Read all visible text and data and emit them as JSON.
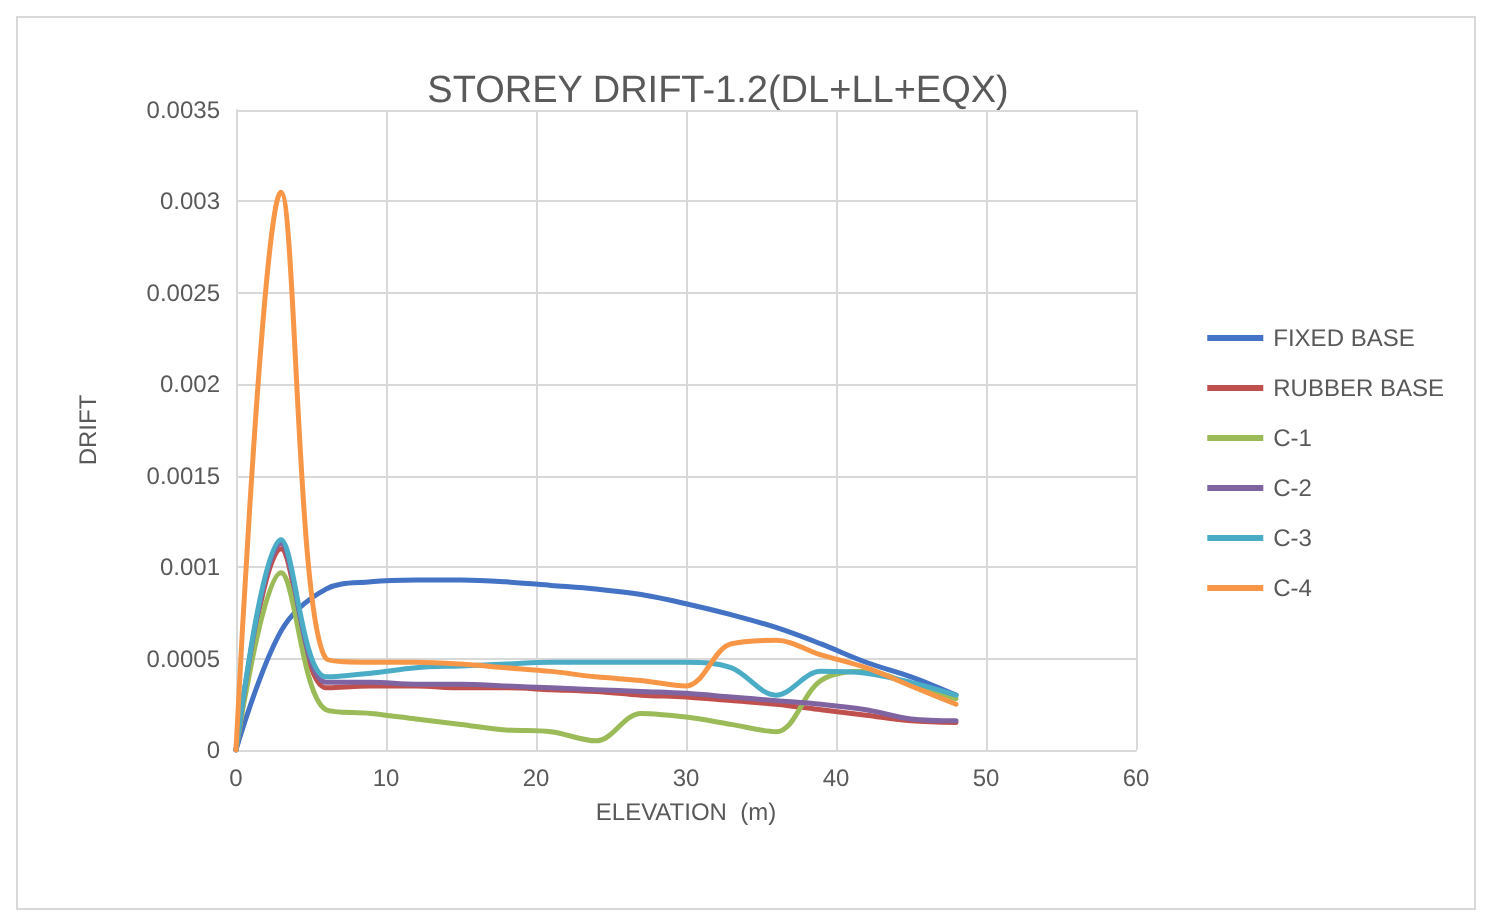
{
  "chart_data": {
    "type": "line",
    "title": "STOREY DRIFT-1.2(DL+LL+EQX)",
    "xlabel": "ELEVATION  (m)",
    "ylabel": "DRIFT",
    "x": [
      0,
      3,
      6,
      9,
      12,
      15,
      18,
      21,
      24,
      27,
      30,
      33,
      36,
      39,
      42,
      45,
      48
    ],
    "xlim": [
      0,
      60
    ],
    "xticks": [
      0,
      10,
      20,
      30,
      40,
      50,
      60
    ],
    "ylim": [
      0,
      0.0035
    ],
    "yticks": [
      0,
      0.0005,
      0.001,
      0.0015,
      0.002,
      0.0025,
      0.003,
      0.0035
    ],
    "grid": true,
    "legend": "right",
    "marker": "none",
    "line_style": "solid",
    "series": [
      {
        "name": "FIXED BASE",
        "color": "#4472c4",
        "values": [
          0,
          0.00065,
          0.00088,
          0.00092,
          0.00093,
          0.00093,
          0.00092,
          0.0009,
          0.00088,
          0.00085,
          0.0008,
          0.00074,
          0.00067,
          0.00058,
          0.00048,
          0.0004,
          0.0003
        ]
      },
      {
        "name": "RUBBER BASE",
        "color": "#c0504d",
        "values": [
          0,
          0.0011,
          0.00034,
          0.00035,
          0.00035,
          0.00034,
          0.00034,
          0.00033,
          0.00032,
          0.0003,
          0.00029,
          0.00027,
          0.00025,
          0.00022,
          0.00019,
          0.00016,
          0.00015
        ]
      },
      {
        "name": "C-1",
        "color": "#9bbb59",
        "values": [
          0,
          0.00097,
          0.00022,
          0.0002,
          0.00017,
          0.00014,
          0.00011,
          0.0001,
          5e-05,
          0.0002,
          0.00018,
          0.00014,
          0.0001,
          0.00038,
          0.00043,
          0.00036,
          0.00028
        ]
      },
      {
        "name": "C-2",
        "color": "#8064a2",
        "values": [
          0,
          0.00113,
          0.00037,
          0.00037,
          0.00036,
          0.00036,
          0.00035,
          0.00034,
          0.00033,
          0.00032,
          0.00031,
          0.00029,
          0.00027,
          0.00025,
          0.00022,
          0.00017,
          0.00016
        ]
      },
      {
        "name": "C-3",
        "color": "#4bacc6",
        "values": [
          0,
          0.00115,
          0.0004,
          0.00042,
          0.00045,
          0.00046,
          0.00047,
          0.00048,
          0.00048,
          0.00048,
          0.00048,
          0.00045,
          0.0003,
          0.00043,
          0.00042,
          0.00037,
          0.0003
        ]
      },
      {
        "name": "C-4",
        "color": "#f79646",
        "values": [
          0,
          0.00305,
          0.0005,
          0.00048,
          0.00048,
          0.00047,
          0.00045,
          0.00043,
          0.0004,
          0.00038,
          0.00035,
          0.00058,
          0.0006,
          0.00052,
          0.00045,
          0.00035,
          0.00025
        ]
      }
    ]
  }
}
